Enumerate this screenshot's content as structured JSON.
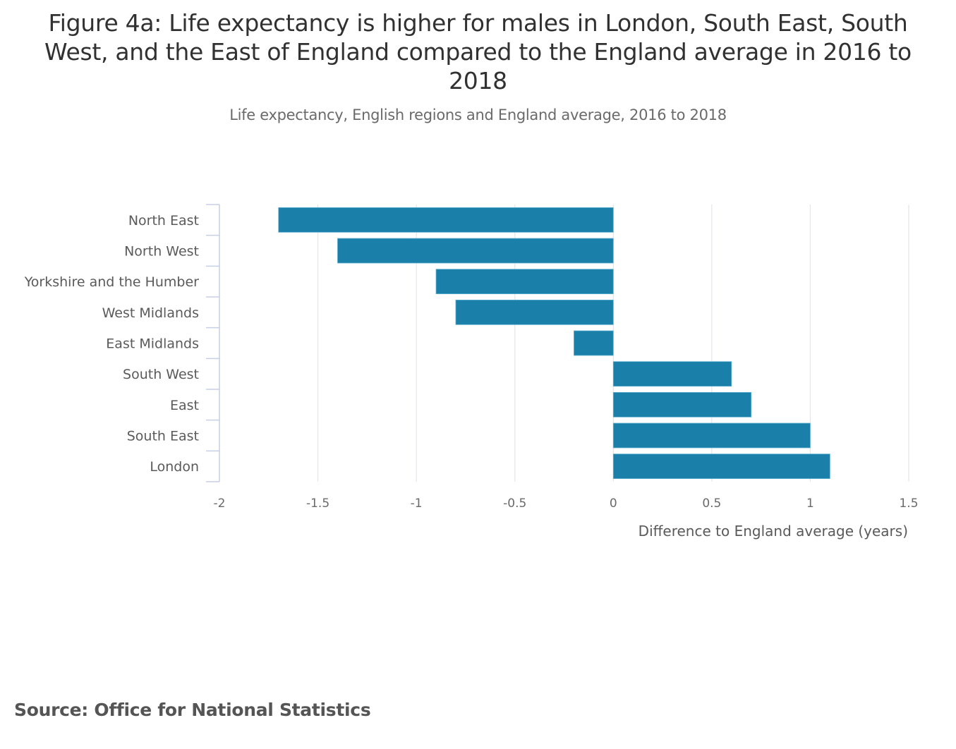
{
  "chart_data": {
    "type": "bar",
    "orientation": "horizontal",
    "title": "Figure 4a: Life expectancy is higher for males in London, South East, South West, and the East of England compared to the England average in 2016 to 2018",
    "subtitle": "Life expectancy, English regions and England average, 2016 to 2018",
    "categories": [
      "North East",
      "North West",
      "Yorkshire and the Humber",
      "West Midlands",
      "East Midlands",
      "South West",
      "East",
      "South East",
      "London"
    ],
    "values": [
      -1.7,
      -1.4,
      -0.9,
      -0.8,
      -0.2,
      0.6,
      0.7,
      1.0,
      1.1
    ],
    "xlabel": "Difference to England average (years)",
    "ylabel": "",
    "xlim": [
      -2,
      1.5
    ],
    "xticks": [
      -2,
      -1.5,
      -1,
      -0.5,
      0,
      0.5,
      1,
      1.5
    ],
    "xtick_labels": [
      "-2",
      "-1.5",
      "-1",
      "-0.5",
      "0",
      "0.5",
      "1",
      "1.5"
    ],
    "grid": "vertical",
    "legend": "none",
    "bar_color": "#1a80aa",
    "source": "Source: Office for National Statistics"
  }
}
